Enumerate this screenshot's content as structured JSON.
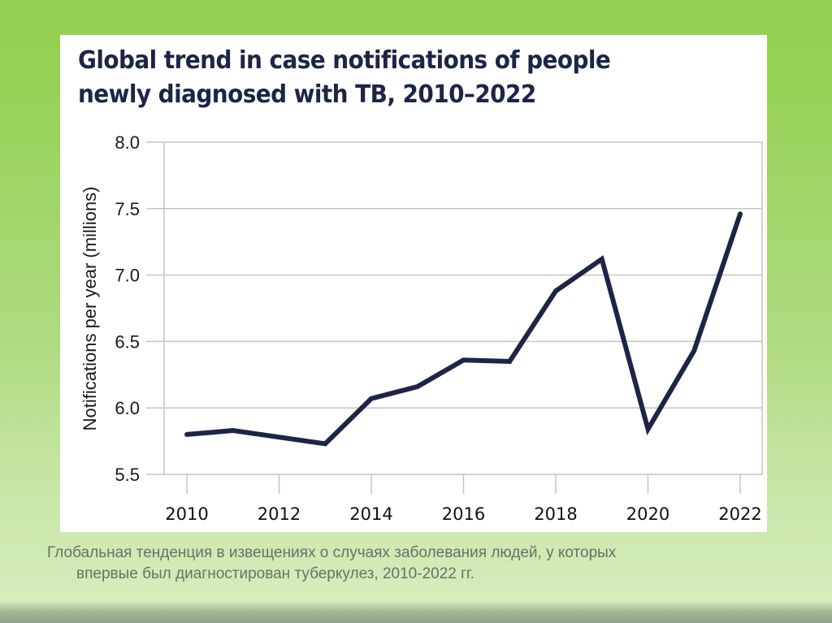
{
  "chart_data": {
    "type": "line",
    "title": "Global trend in case notifications of people newly diagnosed with TB, 2010–2022",
    "title_lines": [
      "Global trend in case notifications of people",
      "newly diagnosed with TB, 2010–2022"
    ],
    "xlabel": "",
    "ylabel": "Notifications per year (millions)",
    "x": [
      2010,
      2011,
      2012,
      2013,
      2014,
      2015,
      2016,
      2017,
      2018,
      2019,
      2020,
      2021,
      2022
    ],
    "series": [
      {
        "name": "Case notifications",
        "values": [
          5.8,
          5.83,
          5.78,
          5.73,
          6.07,
          6.16,
          6.36,
          6.35,
          6.88,
          7.12,
          5.84,
          6.43,
          7.46
        ],
        "color": "#1d2547"
      }
    ],
    "xlim": [
      2009.75,
      2022.5
    ],
    "ylim": [
      5.5,
      8.0
    ],
    "yticks": [
      5.5,
      6.0,
      6.5,
      7.0,
      7.5,
      8.0
    ],
    "ytick_labels": [
      "5.5",
      "6.0",
      "6.5",
      "7.0",
      "7.5",
      "8.0"
    ],
    "xticks": [
      2010,
      2012,
      2014,
      2016,
      2018,
      2020,
      2022
    ],
    "xtick_labels": [
      "2010",
      "2012",
      "2014",
      "2016",
      "2018",
      "2020",
      "2022"
    ],
    "grid": "horizontal",
    "legend": "none"
  },
  "caption": {
    "line1": "Глобальная тенденция в извещениях о случаях заболевания людей, у которых",
    "line2": "впервые был диагностирован туберкулез, 2010-2022 гг."
  },
  "colors": {
    "background_top": "#92d050",
    "background_bottom": "#d6ecbd",
    "panel": "#ffffff",
    "line": "#1d2547",
    "grid": "#c4c4c4",
    "caption_text": "#6b6f66"
  }
}
